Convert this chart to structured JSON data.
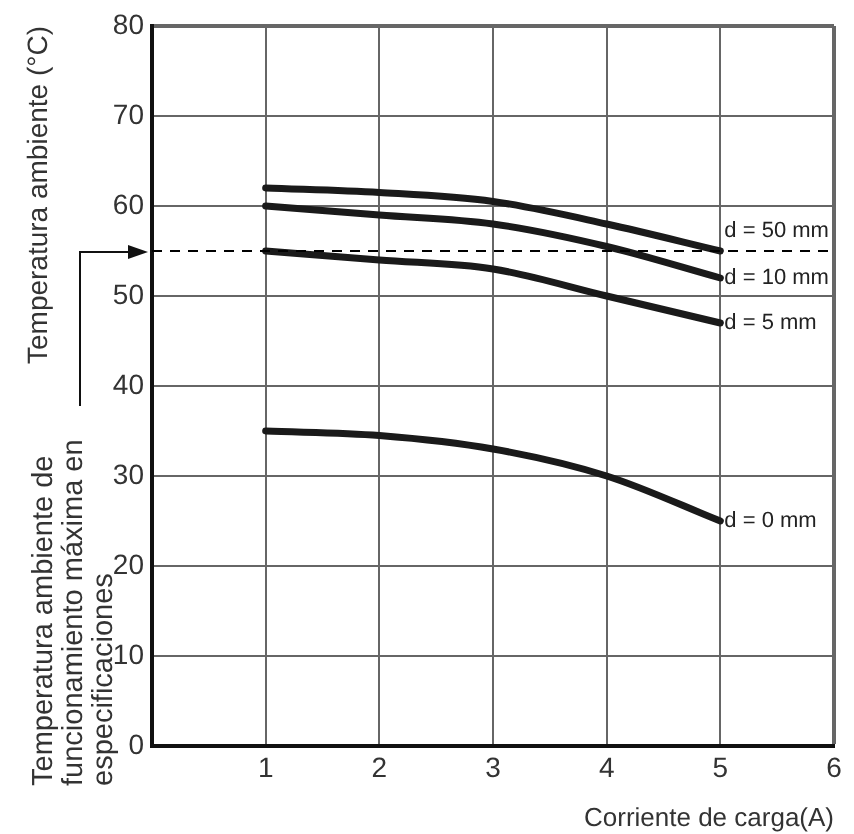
{
  "chart_data": {
    "type": "line",
    "xlabel": "Corriente de carga(A)",
    "ylabel": "Temperatura ambiente (°C)",
    "x": [
      1,
      2,
      3,
      4,
      5
    ],
    "series": [
      {
        "name": "d = 50 mm",
        "color": "#1a1a1a",
        "values": [
          62,
          61.5,
          60.5,
          58,
          55
        ]
      },
      {
        "name": "d = 10 mm",
        "color": "#1a1a1a",
        "values": [
          60,
          59,
          58,
          55.5,
          52
        ]
      },
      {
        "name": "d = 5 mm",
        "color": "#1a1a1a",
        "values": [
          55,
          54,
          53,
          50,
          47
        ]
      },
      {
        "name": "d = 0 mm",
        "color": "#1a1a1a",
        "values": [
          35,
          34.5,
          33,
          30,
          25
        ]
      }
    ],
    "xlim": [
      0,
      6
    ],
    "xticks": [
      {
        "value": 0,
        "label": null
      },
      1,
      2,
      3,
      4,
      5,
      6
    ],
    "ylim": [
      0,
      80
    ],
    "yticks": [
      0,
      10,
      20,
      30,
      40,
      50,
      60,
      70,
      80
    ],
    "ref_lines": [
      {
        "axis": "y",
        "value": 55,
        "line_style": "dashed",
        "color": "#000000"
      }
    ],
    "annotations": [
      "Temperatura ambiente de funcionamiento máxima en especificaciones"
    ],
    "grid": true,
    "legend": false,
    "marker": "none"
  }
}
